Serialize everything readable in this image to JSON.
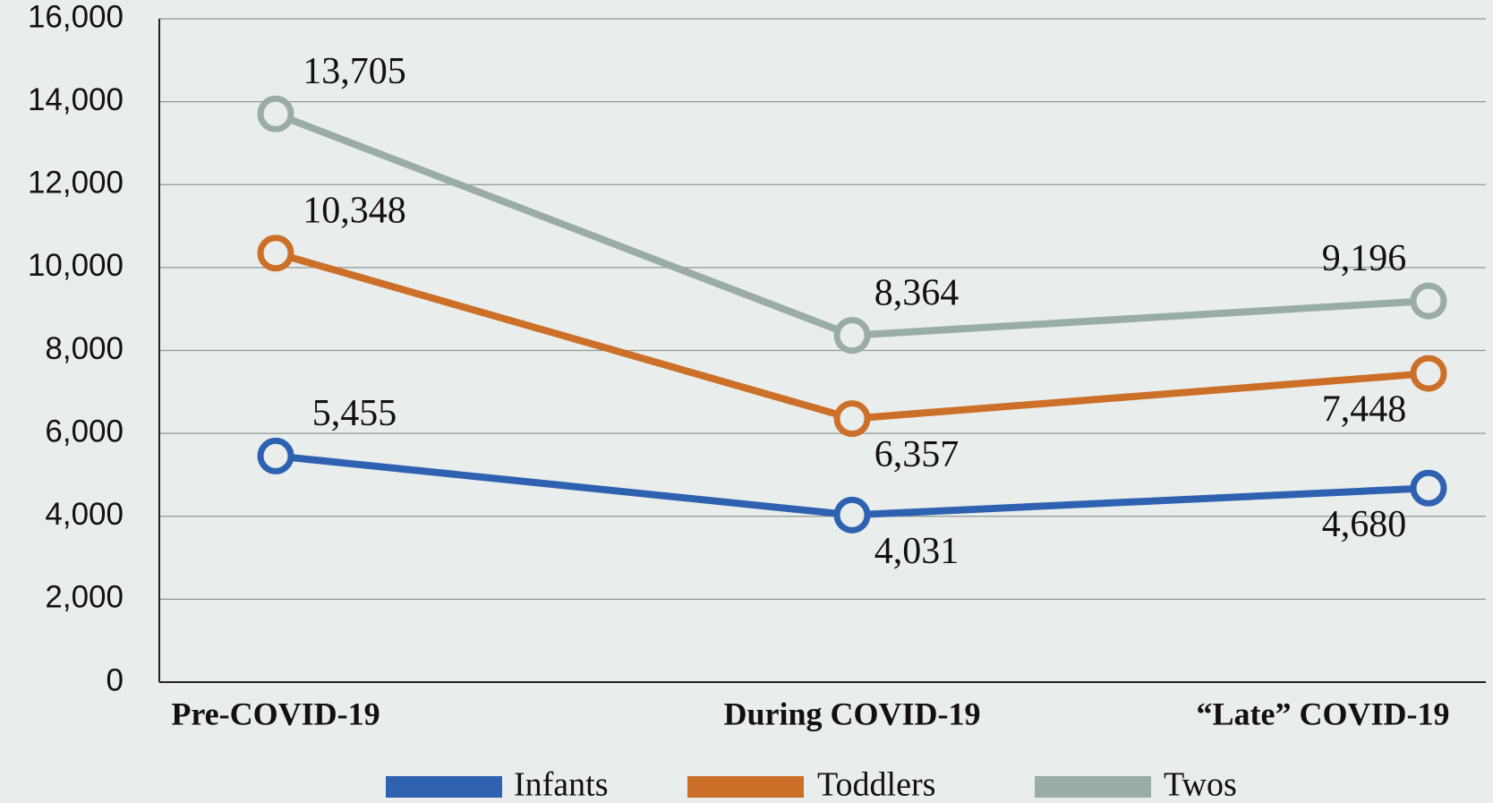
{
  "chart_data": {
    "type": "line",
    "categories": [
      "Pre-COVID-19",
      "During COVID-19",
      "“Late” COVID-19"
    ],
    "series": [
      {
        "name": "Infants",
        "color": "#2e62b0",
        "values": [
          5455,
          4031,
          4680
        ],
        "value_labels": [
          "5,455",
          "4,031",
          "4,680"
        ]
      },
      {
        "name": "Toddlers",
        "color": "#cc7029",
        "values": [
          10348,
          6357,
          7448
        ],
        "value_labels": [
          "10,348",
          "6,357",
          "7,448"
        ]
      },
      {
        "name": "Twos",
        "color": "#9aada5",
        "values": [
          13705,
          8364,
          9196
        ],
        "value_labels": [
          "13,705",
          "8,364",
          "9,196"
        ]
      }
    ],
    "ylim": [
      0,
      16000
    ],
    "yticks": [
      0,
      {
        "value": 2000,
        "label": "2,000"
      },
      {
        "value": 4000,
        "label": "4,000"
      },
      {
        "value": 6000,
        "label": "6,000"
      },
      {
        "value": 8000,
        "label": "8,000"
      },
      {
        "value": 10000,
        "label": "10,000"
      },
      {
        "value": 12000,
        "label": "12,000"
      },
      {
        "value": 14000,
        "label": "14,000"
      },
      {
        "value": 16000,
        "label": "16,000"
      }
    ],
    "grid": true,
    "legend": "bottom"
  }
}
